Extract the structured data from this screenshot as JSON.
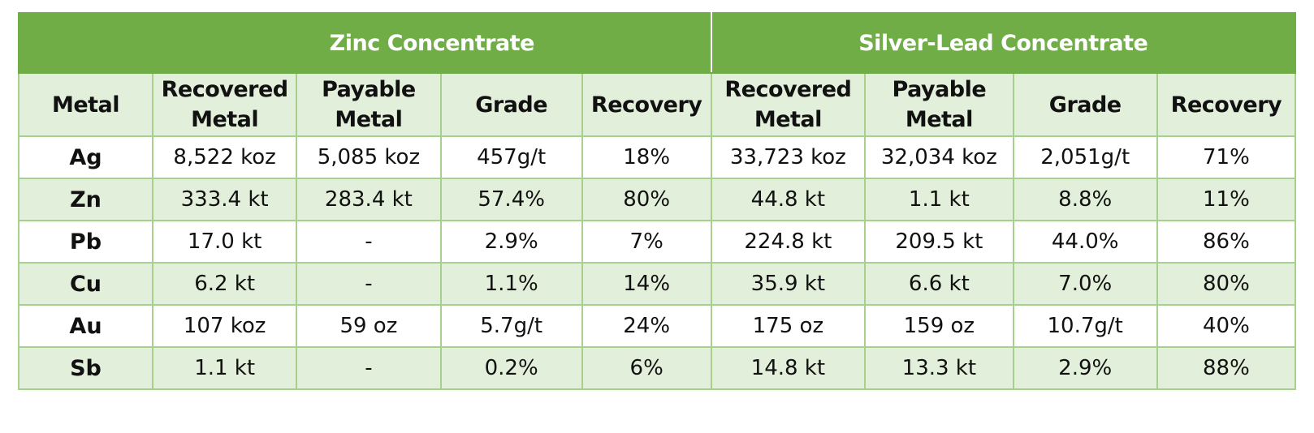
{
  "groups": {
    "zinc": "Zinc Concentrate",
    "silver_lead": "Silver-Lead Concentrate"
  },
  "columns": {
    "metal": "Metal",
    "zinc": {
      "recovered_l1": "Recovered",
      "recovered_l2": "Metal",
      "payable_l1": "Payable",
      "payable_l2": "Metal",
      "grade": "Grade",
      "recovery": "Recovery"
    },
    "silver_lead": {
      "recovered_l1": "Recovered",
      "recovered_l2": "Metal",
      "payable_l1": "Payable",
      "payable_l2": "Metal",
      "grade": "Grade",
      "recovery": "Recovery"
    }
  },
  "rows": [
    {
      "metal": "Ag",
      "zn_recovered": "8,522 koz",
      "zn_payable": "5,085 koz",
      "zn_grade": "457g/t",
      "zn_recovery": "18%",
      "pb_recovered": "33,723 koz",
      "pb_payable": "32,034 koz",
      "pb_grade": "2,051g/t",
      "pb_recovery": "71%"
    },
    {
      "metal": "Zn",
      "zn_recovered": "333.4 kt",
      "zn_payable": "283.4 kt",
      "zn_grade": "57.4%",
      "zn_recovery": "80%",
      "pb_recovered": "44.8 kt",
      "pb_payable": "1.1 kt",
      "pb_grade": "8.8%",
      "pb_recovery": "11%"
    },
    {
      "metal": "Pb",
      "zn_recovered": "17.0 kt",
      "zn_payable": "-",
      "zn_grade": "2.9%",
      "zn_recovery": "7%",
      "pb_recovered": "224.8 kt",
      "pb_payable": "209.5 kt",
      "pb_grade": "44.0%",
      "pb_recovery": "86%"
    },
    {
      "metal": "Cu",
      "zn_recovered": "6.2 kt",
      "zn_payable": "-",
      "zn_grade": "1.1%",
      "zn_recovery": "14%",
      "pb_recovered": "35.9 kt",
      "pb_payable": "6.6 kt",
      "pb_grade": "7.0%",
      "pb_recovery": "80%"
    },
    {
      "metal": "Au",
      "zn_recovered": "107 koz",
      "zn_payable": "59 oz",
      "zn_grade": "5.7g/t",
      "zn_recovery": "24%",
      "pb_recovered": "175 oz",
      "pb_payable": "159 oz",
      "pb_grade": "10.7g/t",
      "pb_recovery": "40%"
    },
    {
      "metal": "Sb",
      "zn_recovered": "1.1 kt",
      "zn_payable": "-",
      "zn_grade": "0.2%",
      "zn_recovery": "6%",
      "pb_recovered": "14.8 kt",
      "pb_payable": "13.3 kt",
      "pb_grade": "2.9%",
      "pb_recovery": "88%"
    }
  ],
  "colors": {
    "header_green": "#70ad47",
    "band_light_green": "#e2efda",
    "border_green": "#a8d08d"
  }
}
